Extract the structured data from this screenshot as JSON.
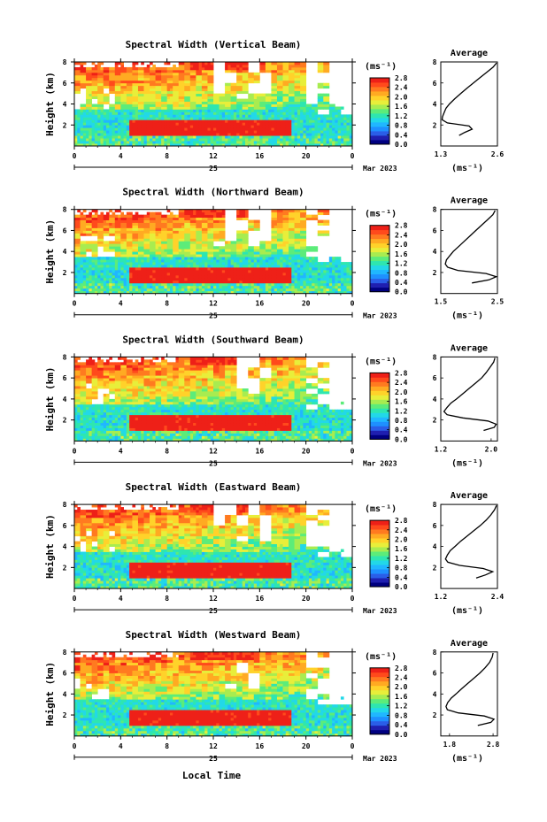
{
  "figure": {
    "xlabel": "Local Time",
    "day_label": "25",
    "month_label": "Mar 2023",
    "x_ticks": [
      "0",
      "4",
      "8",
      "12",
      "16",
      "20",
      "0"
    ],
    "ylabel": "Height (km)",
    "y_ticks": [
      "2",
      "4",
      "6",
      "8"
    ],
    "colorbar_title": "(ms⁻¹)",
    "colorbar_ticks": [
      "0.0",
      "0.4",
      "0.8",
      "1.2",
      "1.6",
      "2.0",
      "2.4",
      "2.8"
    ],
    "colorbar_colors": [
      "#000080",
      "#1f1fb0",
      "#2a5ee8",
      "#1e90ff",
      "#20b7ff",
      "#22d8e8",
      "#2ee6b0",
      "#5cec7a",
      "#a8ec50",
      "#e8ee3a",
      "#ffd22a",
      "#ffaa22",
      "#ff7a20",
      "#ff4a1c",
      "#ee2018"
    ],
    "profile_title": "Average",
    "profile_unit": "(ms⁻¹)"
  },
  "chart_data": [
    {
      "type": "heatmap",
      "title": "Spectral Width (Vertical Beam)",
      "x_unit": "hours local time",
      "xlim": [
        0,
        24
      ],
      "ylim": [
        0,
        8
      ],
      "zlim": [
        0,
        2.8
      ],
      "profile": {
        "title": "Average",
        "x_ticks": [
          "1.3",
          "2.6"
        ],
        "xlim": [
          1.3,
          2.6
        ],
        "heights": [
          1.0,
          1.3,
          1.6,
          1.9,
          2.2,
          2.5,
          2.8,
          3.2,
          3.6,
          4.0,
          4.5,
          5.0,
          5.5,
          6.0,
          6.5,
          7.0,
          7.5,
          7.9
        ],
        "values": [
          1.72,
          1.85,
          2.02,
          1.95,
          1.45,
          1.33,
          1.34,
          1.38,
          1.42,
          1.5,
          1.62,
          1.76,
          1.9,
          2.05,
          2.2,
          2.35,
          2.5,
          2.58
        ]
      }
    },
    {
      "type": "heatmap",
      "title": "Spectral Width (Northward Beam)",
      "x_unit": "hours local time",
      "xlim": [
        0,
        24
      ],
      "ylim": [
        0,
        8
      ],
      "zlim": [
        0,
        2.8
      ],
      "profile": {
        "title": "Average",
        "x_ticks": [
          "1.5",
          "2.5"
        ],
        "xlim": [
          1.5,
          2.5
        ],
        "heights": [
          1.0,
          1.3,
          1.6,
          1.9,
          2.2,
          2.5,
          2.8,
          3.2,
          3.6,
          4.0,
          4.5,
          5.0,
          5.5,
          6.0,
          6.5,
          7.0,
          7.5,
          7.9
        ],
        "values": [
          2.05,
          2.35,
          2.48,
          2.3,
          1.8,
          1.62,
          1.58,
          1.6,
          1.66,
          1.72,
          1.82,
          1.92,
          2.02,
          2.12,
          2.22,
          2.32,
          2.42,
          2.46
        ]
      }
    },
    {
      "type": "heatmap",
      "title": "Spectral Width (Southward Beam)",
      "x_unit": "hours local time",
      "xlim": [
        0,
        24
      ],
      "ylim": [
        0,
        8
      ],
      "zlim": [
        0,
        2.8
      ],
      "profile": {
        "title": "Average",
        "x_ticks": [
          "1.2",
          "2.0"
        ],
        "xlim": [
          1.2,
          2.1
        ],
        "heights": [
          1.0,
          1.3,
          1.6,
          1.9,
          2.2,
          2.5,
          2.8,
          3.2,
          3.6,
          4.0,
          4.5,
          5.0,
          5.5,
          6.0,
          6.5,
          7.0,
          7.5,
          7.9
        ],
        "values": [
          1.88,
          2.05,
          2.08,
          1.95,
          1.55,
          1.3,
          1.25,
          1.3,
          1.36,
          1.45,
          1.55,
          1.65,
          1.75,
          1.85,
          1.92,
          1.98,
          2.04,
          2.06
        ]
      }
    },
    {
      "type": "heatmap",
      "title": "Spectral Width (Eastward Beam)",
      "x_unit": "hours local time",
      "xlim": [
        0,
        24
      ],
      "ylim": [
        0,
        8
      ],
      "zlim": [
        0,
        2.8
      ],
      "profile": {
        "title": "Average",
        "x_ticks": [
          "1.2",
          "2.4"
        ],
        "xlim": [
          1.2,
          2.4
        ],
        "heights": [
          1.0,
          1.3,
          1.6,
          1.9,
          2.2,
          2.5,
          2.8,
          3.2,
          3.6,
          4.0,
          4.5,
          5.0,
          5.5,
          6.0,
          6.5,
          7.0,
          7.5,
          7.9
        ],
        "values": [
          1.95,
          2.15,
          2.3,
          2.1,
          1.6,
          1.35,
          1.3,
          1.34,
          1.4,
          1.5,
          1.62,
          1.76,
          1.9,
          2.04,
          2.16,
          2.26,
          2.34,
          2.38
        ]
      }
    },
    {
      "type": "heatmap",
      "title": "Spectral Width (Westward Beam)",
      "x_unit": "hours local time",
      "xlim": [
        0,
        24
      ],
      "ylim": [
        0,
        8
      ],
      "zlim": [
        0,
        2.8
      ],
      "profile": {
        "title": "Average",
        "x_ticks": [
          "1.8",
          "2.8"
        ],
        "xlim": [
          1.6,
          2.9
        ],
        "heights": [
          1.0,
          1.3,
          1.6,
          1.9,
          2.2,
          2.5,
          2.8,
          3.2,
          3.6,
          4.0,
          4.5,
          5.0,
          5.5,
          6.0,
          6.5,
          7.0,
          7.5,
          7.9
        ],
        "values": [
          2.45,
          2.75,
          2.82,
          2.6,
          2.0,
          1.75,
          1.72,
          1.76,
          1.84,
          1.95,
          2.08,
          2.22,
          2.36,
          2.5,
          2.62,
          2.72,
          2.78,
          2.8
        ]
      }
    }
  ]
}
